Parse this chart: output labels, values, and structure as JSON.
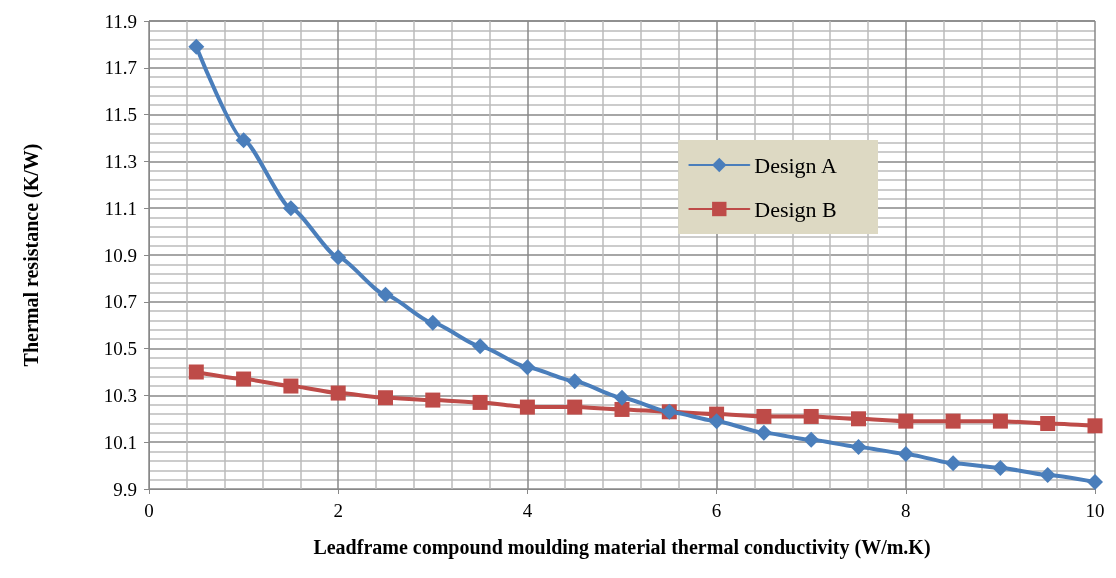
{
  "chart_data": {
    "type": "line",
    "xlabel": "Leadframe compound moulding material thermal conductivity (W/m.K)",
    "ylabel": "Thermal resistance (K/W)",
    "x": [
      0.5,
      1,
      1.5,
      2,
      2.5,
      3,
      3.5,
      4,
      4.5,
      5,
      5.5,
      6,
      6.5,
      7,
      7.5,
      8,
      8.5,
      9,
      9.5,
      10
    ],
    "series": [
      {
        "name": "Design A",
        "color": "#4a7ebb",
        "marker": "diamond",
        "values": [
          11.79,
          11.39,
          11.1,
          10.89,
          10.73,
          10.61,
          10.51,
          10.42,
          10.36,
          10.29,
          10.23,
          10.19,
          10.14,
          10.11,
          10.08,
          10.05,
          10.01,
          9.99,
          9.96,
          9.93
        ]
      },
      {
        "name": "Design B",
        "color": "#be4b48",
        "marker": "square",
        "values": [
          10.4,
          10.37,
          10.34,
          10.31,
          10.29,
          10.28,
          10.27,
          10.25,
          10.25,
          10.24,
          10.23,
          10.22,
          10.21,
          10.21,
          10.2,
          10.19,
          10.19,
          10.19,
          10.18,
          10.17
        ]
      }
    ],
    "xlim": [
      0,
      10
    ],
    "xticks": [
      0,
      2,
      4,
      6,
      8,
      10
    ],
    "ylim": [
      9.9,
      11.9
    ],
    "yticks": [
      9.9,
      10.1,
      10.3,
      10.5,
      10.7,
      10.9,
      11.1,
      11.3,
      11.5,
      11.7,
      11.9
    ],
    "grid": true,
    "legend": "right",
    "line_style": "solid"
  }
}
